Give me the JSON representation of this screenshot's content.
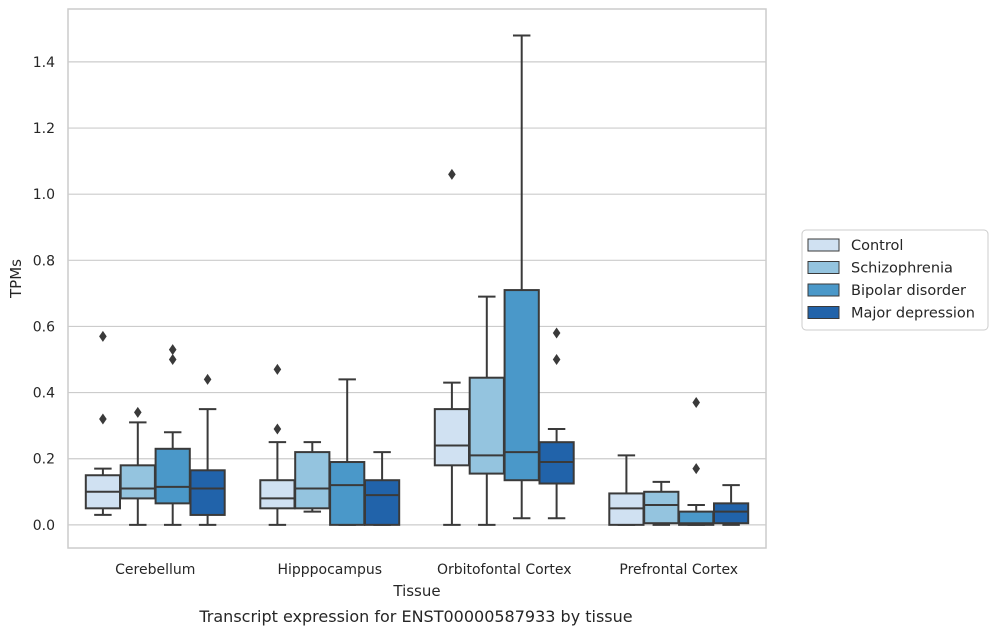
{
  "chart_data": {
    "type": "box",
    "caption": "Transcript expression for ENST00000587933 by tissue",
    "xlabel": "Tissue",
    "ylabel": "TPMs",
    "ylim": [
      -0.07,
      1.56
    ],
    "yticks": [
      0.0,
      0.2,
      0.4,
      0.6,
      0.8,
      1.0,
      1.2,
      1.4
    ],
    "ytick_labels": [
      "0.0",
      "0.2",
      "0.4",
      "0.6",
      "0.8",
      "1.0",
      "1.2",
      "1.4"
    ],
    "grid": true,
    "legend_position": "right",
    "categories": [
      "Cerebellum",
      "Hipppocampus",
      "Orbitofontal Cortex",
      "Prefrontal Cortex"
    ],
    "series": [
      {
        "name": "Control",
        "color": "#d0e1f2",
        "boxes": [
          {
            "min": 0.03,
            "q1": 0.05,
            "median": 0.1,
            "q3": 0.15,
            "max": 0.17,
            "outliers": [
              0.32,
              0.57
            ]
          },
          {
            "min": 0.0,
            "q1": 0.05,
            "median": 0.08,
            "q3": 0.135,
            "max": 0.25,
            "outliers": [
              0.29,
              0.47
            ]
          },
          {
            "min": 0.0,
            "q1": 0.18,
            "median": 0.24,
            "q3": 0.35,
            "max": 0.43,
            "outliers": [
              1.06
            ]
          },
          {
            "min": 0.0,
            "q1": 0.0,
            "median": 0.05,
            "q3": 0.095,
            "max": 0.21,
            "outliers": []
          }
        ]
      },
      {
        "name": "Schizophrenia",
        "color": "#94c4df",
        "boxes": [
          {
            "min": 0.0,
            "q1": 0.08,
            "median": 0.11,
            "q3": 0.18,
            "max": 0.31,
            "outliers": [
              0.34
            ]
          },
          {
            "min": 0.04,
            "q1": 0.05,
            "median": 0.11,
            "q3": 0.22,
            "max": 0.25,
            "outliers": []
          },
          {
            "min": 0.0,
            "q1": 0.155,
            "median": 0.21,
            "q3": 0.445,
            "max": 0.69,
            "outliers": []
          },
          {
            "min": 0.0,
            "q1": 0.005,
            "median": 0.06,
            "q3": 0.1,
            "max": 0.13,
            "outliers": []
          }
        ]
      },
      {
        "name": "Bipolar disorder",
        "color": "#4a98c9",
        "boxes": [
          {
            "min": 0.0,
            "q1": 0.065,
            "median": 0.115,
            "q3": 0.23,
            "max": 0.28,
            "outliers": [
              0.5,
              0.53
            ]
          },
          {
            "min": 0.0,
            "q1": 0.0,
            "median": 0.12,
            "q3": 0.19,
            "max": 0.44,
            "outliers": []
          },
          {
            "min": 0.02,
            "q1": 0.135,
            "median": 0.22,
            "q3": 0.71,
            "max": 1.48,
            "outliers": []
          },
          {
            "min": 0.0,
            "q1": 0.0,
            "median": 0.005,
            "q3": 0.04,
            "max": 0.06,
            "outliers": [
              0.17,
              0.37
            ]
          }
        ]
      },
      {
        "name": "Major depression",
        "color": "#2163aa",
        "boxes": [
          {
            "min": 0.0,
            "q1": 0.03,
            "median": 0.11,
            "q3": 0.165,
            "max": 0.35,
            "outliers": [
              0.44
            ]
          },
          {
            "min": 0.0,
            "q1": 0.0,
            "median": 0.09,
            "q3": 0.135,
            "max": 0.22,
            "outliers": []
          },
          {
            "min": 0.02,
            "q1": 0.125,
            "median": 0.19,
            "q3": 0.25,
            "max": 0.29,
            "outliers": [
              0.5,
              0.58
            ]
          },
          {
            "min": 0.0,
            "q1": 0.005,
            "median": 0.04,
            "q3": 0.065,
            "max": 0.12,
            "outliers": []
          }
        ]
      }
    ]
  }
}
